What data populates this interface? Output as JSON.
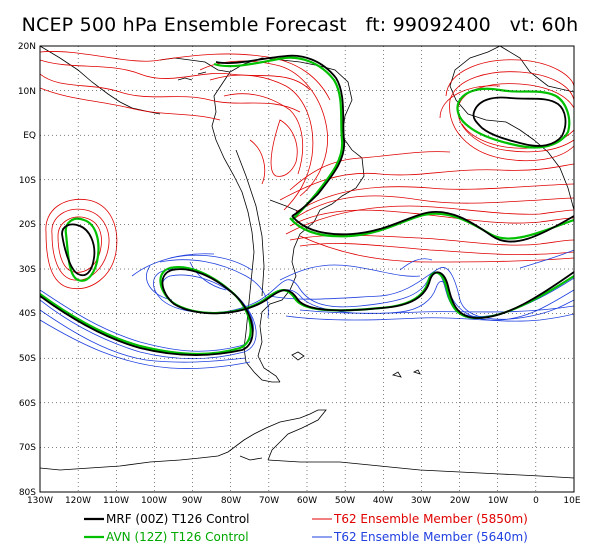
{
  "title": {
    "main": "NCEP 500 hPa Ensemble Forecast",
    "ft": "ft: 99092400",
    "vt": "vt: 60h"
  },
  "lat_labels": [
    "20N",
    "10N",
    "EQ",
    "10S",
    "20S",
    "30S",
    "40S",
    "50S",
    "60S",
    "70S",
    "80S"
  ],
  "lon_labels": [
    "130W",
    "120W",
    "110W",
    "100W",
    "90W",
    "80W",
    "70W",
    "60W",
    "50W",
    "40W",
    "30W",
    "20W",
    "10W",
    "0",
    "10E"
  ],
  "legend": [
    {
      "label": "MRF (00Z) T126 Control",
      "color": "#000000",
      "text_color": "#000000"
    },
    {
      "label": "AVN (12Z) T126 Control",
      "color": "#00c000",
      "text_color": "#00a800"
    },
    {
      "label": "T62 Ensemble Member (5850m)",
      "color": "#e00000",
      "text_color": "#e00000"
    },
    {
      "label": "T62 Ensemble Member (5640m)",
      "color": "#2040e0",
      "text_color": "#2040e0"
    }
  ],
  "colors": {
    "mrf": "#000000",
    "avn": "#00c000",
    "red_members": "#e00000",
    "blue_members": "#2040e0",
    "coast": "#000000"
  }
}
